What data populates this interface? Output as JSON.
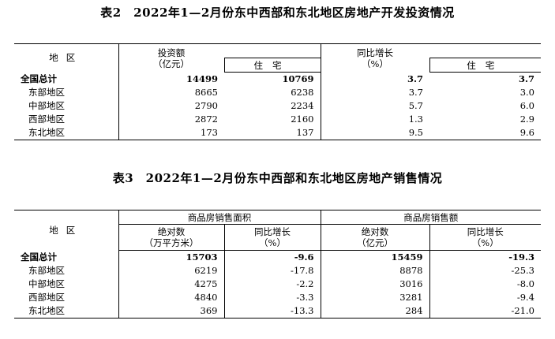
{
  "table2": {
    "title": "表2　2022年1—2月份东中西部和东北地区房地产开发投资情况",
    "header": {
      "region": "地区",
      "investment_line1": "投资额",
      "investment_line2": "（亿元）",
      "residential": "住宅",
      "growth_line1": "同比增长",
      "growth_line2": "（%）",
      "growth_residential": "住宅"
    },
    "rows": [
      {
        "region": "全国总计",
        "investment": "14499",
        "residential": "10769",
        "growth": "3.7",
        "growth_residential": "3.7"
      },
      {
        "region": "东部地区",
        "investment": "8665",
        "residential": "6238",
        "growth": "3.7",
        "growth_residential": "3.0"
      },
      {
        "region": "中部地区",
        "investment": "2790",
        "residential": "2234",
        "growth": "5.7",
        "growth_residential": "6.0"
      },
      {
        "region": "西部地区",
        "investment": "2872",
        "residential": "2160",
        "growth": "1.3",
        "growth_residential": "2.9"
      },
      {
        "region": "东北地区",
        "investment": "173",
        "residential": "137",
        "growth": "9.5",
        "growth_residential": "9.6"
      }
    ]
  },
  "table3": {
    "title": "表3　2022年1—2月份东中西部和东北地区房地产销售情况",
    "header": {
      "region": "地区",
      "area_group": "商品房销售面积",
      "sales_group": "商品房销售额",
      "area_abs_line1": "绝对数",
      "area_abs_line2": "（万平方米）",
      "area_growth_line1": "同比增长",
      "area_growth_line2": "（%）",
      "sales_abs_line1": "绝对数",
      "sales_abs_line2": "（亿元）",
      "sales_growth_line1": "同比增长",
      "sales_growth_line2": "（%）"
    },
    "rows": [
      {
        "region": "全国总计",
        "area": "15703",
        "area_growth": "-9.6",
        "sales": "15459",
        "sales_growth": "-19.3"
      },
      {
        "region": "东部地区",
        "area": "6219",
        "area_growth": "-17.8",
        "sales": "8878",
        "sales_growth": "-25.3"
      },
      {
        "region": "中部地区",
        "area": "4275",
        "area_growth": "-2.2",
        "sales": "3016",
        "sales_growth": "-8.0"
      },
      {
        "region": "西部地区",
        "area": "4840",
        "area_growth": "-3.3",
        "sales": "3281",
        "sales_growth": "-9.4"
      },
      {
        "region": "东北地区",
        "area": "369",
        "area_growth": "-13.3",
        "sales": "284",
        "sales_growth": "-21.0"
      }
    ]
  }
}
